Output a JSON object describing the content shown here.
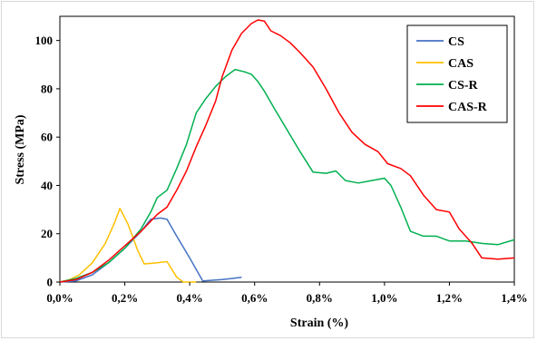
{
  "chart_data": {
    "type": "line",
    "title": "",
    "xlabel": "Strain (%)",
    "ylabel": "Stress (MPa)",
    "xlim": [
      0,
      1.4
    ],
    "ylim": [
      0,
      110
    ],
    "x_ticks": [
      0,
      0.2,
      0.4,
      0.6,
      0.8,
      1.0,
      1.2,
      1.4
    ],
    "x_tick_labels": [
      "0,0%",
      "0,2%",
      "0,4%",
      "0,6%",
      "0,8%",
      "1,0%",
      "1,2%",
      "1,4%"
    ],
    "y_ticks": [
      0,
      20,
      40,
      60,
      80,
      100
    ],
    "y_tick_labels": [
      "0",
      "20",
      "40",
      "60",
      "80",
      "100"
    ],
    "grid": false,
    "legend_position": "top-right",
    "series": [
      {
        "name": "CS",
        "color": "#4472C4",
        "points": [
          [
            0,
            0
          ],
          [
            0.05,
            0.5
          ],
          [
            0.1,
            3
          ],
          [
            0.15,
            8
          ],
          [
            0.2,
            14
          ],
          [
            0.25,
            21
          ],
          [
            0.28,
            26
          ],
          [
            0.31,
            26.5
          ],
          [
            0.33,
            26
          ],
          [
            0.36,
            19
          ],
          [
            0.4,
            10
          ],
          [
            0.44,
            0.5
          ],
          [
            0.5,
            1
          ],
          [
            0.56,
            2
          ]
        ]
      },
      {
        "name": "CAS",
        "color": "#FFC000",
        "points": [
          [
            0,
            0
          ],
          [
            0.03,
            1
          ],
          [
            0.06,
            3
          ],
          [
            0.1,
            8
          ],
          [
            0.14,
            16
          ],
          [
            0.17,
            25
          ],
          [
            0.185,
            30.5
          ],
          [
            0.21,
            24
          ],
          [
            0.24,
            13
          ],
          [
            0.26,
            7.5
          ],
          [
            0.3,
            8
          ],
          [
            0.33,
            8.5
          ],
          [
            0.36,
            2
          ],
          [
            0.38,
            0
          ],
          [
            0.42,
            0
          ]
        ]
      },
      {
        "name": "CS-R",
        "color": "#00B050",
        "points": [
          [
            0,
            0
          ],
          [
            0.05,
            1.5
          ],
          [
            0.1,
            4
          ],
          [
            0.15,
            8
          ],
          [
            0.2,
            14
          ],
          [
            0.25,
            22
          ],
          [
            0.28,
            29
          ],
          [
            0.3,
            35
          ],
          [
            0.33,
            38
          ],
          [
            0.36,
            47
          ],
          [
            0.39,
            57
          ],
          [
            0.42,
            70
          ],
          [
            0.45,
            76
          ],
          [
            0.48,
            81
          ],
          [
            0.51,
            85
          ],
          [
            0.54,
            88
          ],
          [
            0.57,
            87
          ],
          [
            0.59,
            86
          ],
          [
            0.61,
            83
          ],
          [
            0.63,
            79
          ],
          [
            0.66,
            72
          ],
          [
            0.7,
            63
          ],
          [
            0.74,
            54
          ],
          [
            0.78,
            45.5
          ],
          [
            0.82,
            45
          ],
          [
            0.85,
            46
          ],
          [
            0.88,
            42
          ],
          [
            0.92,
            41
          ],
          [
            0.96,
            42
          ],
          [
            1.0,
            43
          ],
          [
            1.02,
            40
          ],
          [
            1.05,
            31
          ],
          [
            1.08,
            21
          ],
          [
            1.12,
            19
          ],
          [
            1.16,
            19
          ],
          [
            1.2,
            17
          ],
          [
            1.25,
            17
          ],
          [
            1.3,
            16
          ],
          [
            1.35,
            15.5
          ],
          [
            1.4,
            17.5
          ]
        ]
      },
      {
        "name": "CAS-R",
        "color": "#FF0000",
        "points": [
          [
            0,
            0
          ],
          [
            0.05,
            1
          ],
          [
            0.1,
            4
          ],
          [
            0.15,
            9
          ],
          [
            0.2,
            15
          ],
          [
            0.25,
            21
          ],
          [
            0.3,
            28
          ],
          [
            0.33,
            31
          ],
          [
            0.36,
            38
          ],
          [
            0.39,
            46
          ],
          [
            0.42,
            56
          ],
          [
            0.45,
            65
          ],
          [
            0.48,
            75
          ],
          [
            0.5,
            85
          ],
          [
            0.53,
            96
          ],
          [
            0.56,
            103
          ],
          [
            0.59,
            107
          ],
          [
            0.61,
            108.5
          ],
          [
            0.63,
            108
          ],
          [
            0.65,
            104
          ],
          [
            0.68,
            102
          ],
          [
            0.71,
            99
          ],
          [
            0.74,
            95
          ],
          [
            0.78,
            89
          ],
          [
            0.82,
            80
          ],
          [
            0.86,
            70
          ],
          [
            0.9,
            62
          ],
          [
            0.94,
            57
          ],
          [
            0.98,
            54
          ],
          [
            1.01,
            49
          ],
          [
            1.05,
            47
          ],
          [
            1.08,
            44
          ],
          [
            1.12,
            36
          ],
          [
            1.16,
            30
          ],
          [
            1.2,
            29
          ],
          [
            1.23,
            22
          ],
          [
            1.27,
            16
          ],
          [
            1.3,
            10
          ],
          [
            1.35,
            9.5
          ],
          [
            1.4,
            10
          ]
        ]
      }
    ]
  }
}
